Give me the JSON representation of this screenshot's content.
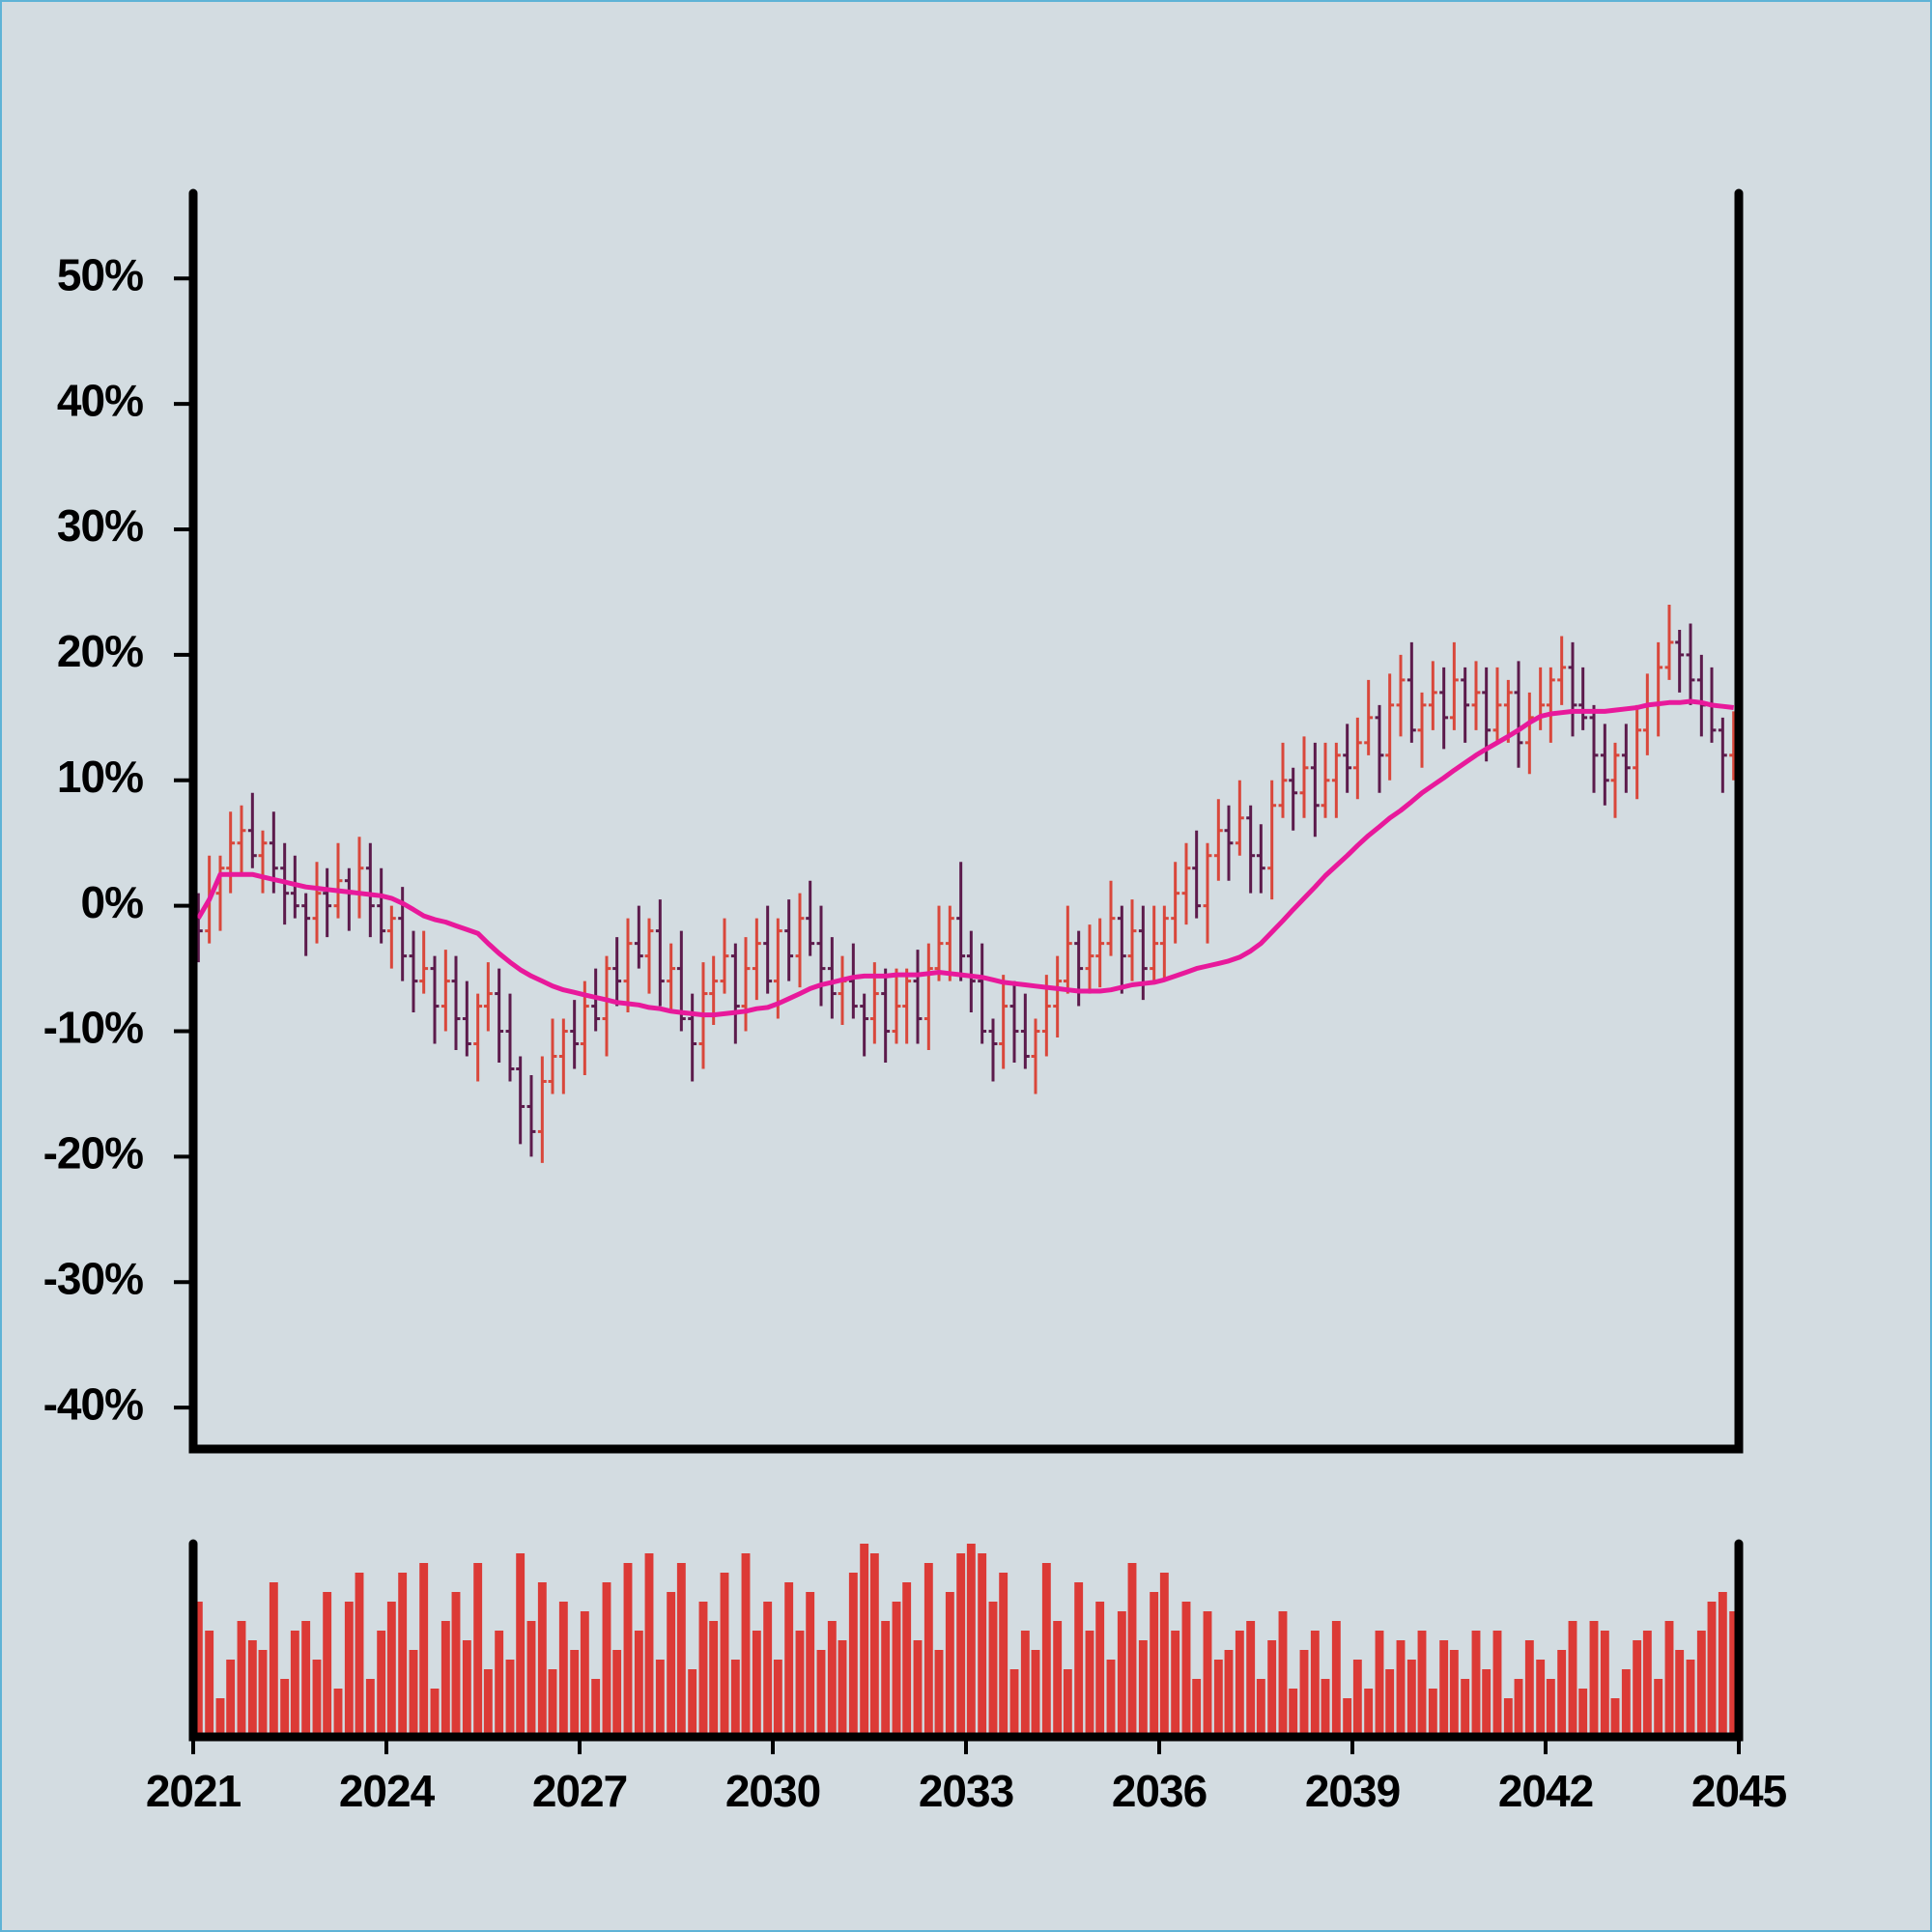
{
  "chart_data": {
    "type": "ohlc",
    "xlim": [
      2021,
      2045
    ],
    "xticks": [
      2021,
      2024,
      2027,
      2030,
      2033,
      2036,
      2039,
      2042,
      2045
    ],
    "ylim": [
      -43.3,
      56.8
    ],
    "yticks": [
      {
        "value": -40,
        "label": "-40%"
      },
      {
        "value": -30,
        "label": "-30%"
      },
      {
        "value": -20,
        "label": "-20%"
      },
      {
        "value": -10,
        "label": "-10%"
      },
      {
        "value": 0,
        "label": "0%"
      },
      {
        "value": 10,
        "label": "10%"
      },
      {
        "value": 20,
        "label": "20%"
      },
      {
        "value": 30,
        "label": "30%"
      },
      {
        "value": 40,
        "label": "40%"
      },
      {
        "value": 50,
        "label": "50%"
      }
    ],
    "up_color": "#d9473b",
    "down_color": "#5c1b4c",
    "x": [
      2021.08,
      2021.25,
      2021.42,
      2021.58,
      2021.75,
      2021.92,
      2022.08,
      2022.25,
      2022.42,
      2022.58,
      2022.75,
      2022.92,
      2023.08,
      2023.25,
      2023.42,
      2023.58,
      2023.75,
      2023.92,
      2024.08,
      2024.25,
      2024.42,
      2024.58,
      2024.75,
      2024.92,
      2025.08,
      2025.25,
      2025.42,
      2025.58,
      2025.75,
      2025.92,
      2026.08,
      2026.25,
      2026.42,
      2026.58,
      2026.75,
      2026.92,
      2027.08,
      2027.25,
      2027.42,
      2027.58,
      2027.75,
      2027.92,
      2028.08,
      2028.25,
      2028.42,
      2028.58,
      2028.75,
      2028.92,
      2029.08,
      2029.25,
      2029.42,
      2029.58,
      2029.75,
      2029.92,
      2030.08,
      2030.25,
      2030.42,
      2030.58,
      2030.75,
      2030.92,
      2031.08,
      2031.25,
      2031.42,
      2031.58,
      2031.75,
      2031.92,
      2032.08,
      2032.25,
      2032.42,
      2032.58,
      2032.75,
      2032.92,
      2033.08,
      2033.25,
      2033.42,
      2033.58,
      2033.75,
      2033.92,
      2034.08,
      2034.25,
      2034.42,
      2034.58,
      2034.75,
      2034.92,
      2035.08,
      2035.25,
      2035.42,
      2035.58,
      2035.75,
      2035.92,
      2036.08,
      2036.25,
      2036.42,
      2036.58,
      2036.75,
      2036.92,
      2037.08,
      2037.25,
      2037.42,
      2037.58,
      2037.75,
      2037.92,
      2038.08,
      2038.25,
      2038.42,
      2038.58,
      2038.75,
      2038.92,
      2039.08,
      2039.25,
      2039.42,
      2039.58,
      2039.75,
      2039.92,
      2040.08,
      2040.25,
      2040.42,
      2040.58,
      2040.75,
      2040.92,
      2041.08,
      2041.25,
      2041.42,
      2041.58,
      2041.75,
      2041.92,
      2042.08,
      2042.25,
      2042.42,
      2042.58,
      2042.75,
      2042.92,
      2043.08,
      2043.25,
      2043.42,
      2043.58,
      2043.75,
      2043.92,
      2044.08,
      2044.25,
      2044.42,
      2044.58,
      2044.75,
      2044.92
    ],
    "open": [
      -1,
      -2,
      1,
      3,
      5,
      6,
      4,
      5,
      3,
      1,
      0,
      -1,
      1,
      0,
      2,
      1,
      3,
      0,
      -2,
      -1,
      -4,
      -6,
      -5,
      -8,
      -6,
      -9,
      -11,
      -8,
      -7,
      -10,
      -13,
      -16,
      -18,
      -14,
      -12,
      -10,
      -11,
      -8,
      -9,
      -5,
      -6,
      -3,
      -4,
      -2,
      -6,
      -5,
      -9,
      -11,
      -7,
      -6,
      -4,
      -8,
      -5,
      -3,
      -6,
      -2,
      -4,
      -1,
      -3,
      -5,
      -7,
      -6,
      -8,
      -9,
      -7,
      -10,
      -8,
      -6,
      -9,
      -5,
      -3,
      -1,
      -4,
      -6,
      -10,
      -11,
      -8,
      -10,
      -12,
      -10,
      -8,
      -6,
      -3,
      -5,
      -4,
      -3,
      -1,
      -4,
      -2,
      -5,
      -3,
      -1,
      1,
      3,
      0,
      4,
      6,
      5,
      7,
      4,
      3,
      8,
      10,
      9,
      11,
      8,
      10,
      12,
      11,
      13,
      15,
      12,
      16,
      18,
      14,
      16,
      17,
      15,
      18,
      16,
      17,
      14,
      16,
      17,
      13,
      15,
      16,
      18,
      19,
      16,
      15,
      12,
      10,
      12,
      11,
      14,
      16,
      19,
      21,
      20,
      18,
      16,
      14,
      12
    ],
    "high": [
      1,
      4,
      4,
      7.5,
      8,
      9,
      6,
      7.5,
      5,
      4,
      1,
      3.5,
      3,
      5,
      3,
      5.5,
      5,
      3,
      0,
      1.5,
      -2,
      -2,
      -4,
      -3.5,
      -4,
      -6,
      -7,
      -4.5,
      -5,
      -7,
      -12,
      -13.5,
      -12,
      -9,
      -9,
      -7.5,
      -6,
      -5,
      -4,
      -2.5,
      -1,
      0,
      -1,
      0.5,
      -3,
      -2,
      -7,
      -4.5,
      -4,
      -1,
      -3,
      -2.5,
      -1,
      0,
      -1,
      0.5,
      1,
      2,
      0,
      -2.5,
      -4,
      -3,
      -7,
      -4.5,
      -5,
      -5,
      -5,
      -3.5,
      -3,
      0,
      0,
      3.5,
      -2,
      -3,
      -9,
      -5.5,
      -6,
      -7,
      -9,
      -5.5,
      -4,
      0,
      -2,
      -1.5,
      -1,
      2,
      0,
      0.5,
      0,
      0,
      0,
      3.5,
      5,
      6,
      5,
      8.5,
      8,
      10,
      8,
      6.5,
      10,
      13,
      11,
      13.5,
      13,
      13,
      13,
      14.5,
      15,
      18,
      16,
      18.5,
      20,
      21,
      17,
      19.5,
      19,
      21,
      19,
      19.5,
      19,
      19,
      18,
      19.5,
      17,
      19,
      19,
      21.5,
      21,
      19,
      16,
      14.5,
      13,
      14.5,
      16,
      18.5,
      21,
      24,
      22,
      22.5,
      20,
      19,
      15,
      15.5
    ],
    "low": [
      -4.5,
      -3,
      -2,
      1,
      2.5,
      3,
      1,
      1,
      -1.5,
      -1,
      -4,
      -3,
      -2.5,
      -1,
      -2,
      -1,
      -2.5,
      -3,
      -5,
      -6,
      -8.5,
      -7,
      -11,
      -10,
      -11.5,
      -12,
      -14,
      -10,
      -12.5,
      -14,
      -19,
      -20,
      -20.5,
      -15,
      -15,
      -13,
      -13.5,
      -10,
      -12,
      -8,
      -8.5,
      -5,
      -7,
      -8,
      -8.5,
      -10,
      -14,
      -13,
      -9.5,
      -7,
      -11,
      -10,
      -7.5,
      -7,
      -9,
      -6,
      -6.5,
      -4,
      -8,
      -9,
      -9.5,
      -9,
      -12,
      -11,
      -12.5,
      -11,
      -11,
      -11,
      -11.5,
      -6,
      -6,
      -6,
      -8.5,
      -11,
      -14,
      -13,
      -12.5,
      -13,
      -15,
      -12,
      -10.5,
      -7,
      -8,
      -7,
      -6.5,
      -4,
      -7,
      -6,
      -7.5,
      -6,
      -6,
      -3,
      -1.5,
      -1,
      -3,
      2,
      2,
      4,
      1,
      1,
      0.5,
      7,
      6,
      7,
      5.5,
      7,
      7,
      9,
      8.5,
      12,
      9,
      10,
      13.5,
      13,
      11,
      14,
      12.5,
      14,
      13,
      14,
      11.5,
      13,
      13,
      11,
      10.5,
      14,
      13,
      16,
      13.5,
      14,
      9,
      8,
      7,
      9,
      8.5,
      12,
      13.5,
      18,
      17,
      16,
      13.5,
      13,
      9,
      10
    ],
    "close": [
      -2,
      1,
      3,
      5,
      6,
      4,
      5,
      3,
      1,
      0,
      -1,
      1,
      0,
      2,
      1,
      3,
      0,
      -2,
      -1,
      -4,
      -6,
      -5,
      -8,
      -6,
      -9,
      -11,
      -8,
      -7,
      -10,
      -13,
      -16,
      -18,
      -14,
      -12,
      -10,
      -11,
      -8,
      -9,
      -5,
      -6,
      -3,
      -4,
      -2,
      -6,
      -5,
      -9,
      -11,
      -7,
      -6,
      -4,
      -8,
      -5,
      -3,
      -6,
      -2,
      -4,
      -1,
      -3,
      -5,
      -7,
      -6,
      -8,
      -9,
      -7,
      -10,
      -8,
      -6,
      -9,
      -5,
      -3,
      -1,
      -4,
      -6,
      -10,
      -11,
      -8,
      -10,
      -12,
      -10,
      -8,
      -6,
      -3,
      -5,
      -4,
      -3,
      -1,
      -4,
      -2,
      -5,
      -3,
      -1,
      1,
      3,
      0,
      4,
      6,
      5,
      7,
      4,
      3,
      8,
      10,
      9,
      11,
      8,
      10,
      12,
      11,
      13,
      15,
      12,
      16,
      18,
      14,
      16,
      17,
      15,
      18,
      16,
      17,
      14,
      16,
      17,
      13,
      15,
      16,
      18,
      19,
      16,
      15,
      12,
      10,
      12,
      11,
      14,
      16,
      19,
      21,
      20,
      18,
      16,
      14,
      12,
      13
    ],
    "moving_average": {
      "color": "#e8199b",
      "values": [
        -1,
        0.5,
        2.5,
        2.5,
        2.5,
        2.5,
        2.3,
        2.1,
        1.9,
        1.7,
        1.5,
        1.4,
        1.3,
        1.2,
        1.1,
        1.0,
        0.9,
        0.8,
        0.6,
        0.2,
        -0.3,
        -0.8,
        -1.1,
        -1.3,
        -1.6,
        -1.9,
        -2.2,
        -3,
        -3.8,
        -4.5,
        -5.1,
        -5.6,
        -6,
        -6.4,
        -6.7,
        -6.9,
        -7.1,
        -7.3,
        -7.5,
        -7.7,
        -7.8,
        -7.9,
        -8.1,
        -8.2,
        -8.4,
        -8.5,
        -8.6,
        -8.7,
        -8.7,
        -8.6,
        -8.5,
        -8.4,
        -8.2,
        -8.1,
        -7.8,
        -7.4,
        -7,
        -6.6,
        -6.3,
        -6.1,
        -5.9,
        -5.7,
        -5.6,
        -5.6,
        -5.6,
        -5.5,
        -5.5,
        -5.5,
        -5.4,
        -5.3,
        -5.4,
        -5.5,
        -5.6,
        -5.7,
        -5.9,
        -6.1,
        -6.2,
        -6.3,
        -6.4,
        -6.5,
        -6.6,
        -6.7,
        -6.8,
        -6.8,
        -6.8,
        -6.7,
        -6.5,
        -6.3,
        -6.2,
        -6.1,
        -5.9,
        -5.6,
        -5.3,
        -5,
        -4.8,
        -4.6,
        -4.4,
        -4.1,
        -3.6,
        -3,
        -2.1,
        -1.2,
        -0.3,
        0.6,
        1.5,
        2.4,
        3.2,
        4,
        4.8,
        5.6,
        6.3,
        7,
        7.6,
        8.3,
        9,
        9.6,
        10.2,
        10.8,
        11.4,
        12,
        12.5,
        13,
        13.5,
        14,
        14.6,
        15.1,
        15.3,
        15.4,
        15.5,
        15.5,
        15.5,
        15.5,
        15.6,
        15.7,
        15.8,
        16,
        16.1,
        16.2,
        16.2,
        16.3,
        16.2,
        16,
        15.9,
        15.8
      ]
    },
    "volume": {
      "color": "#dc3a36",
      "ylim": [
        0,
        100
      ],
      "values": [
        70,
        55,
        20,
        40,
        60,
        50,
        45,
        80,
        30,
        55,
        60,
        40,
        75,
        25,
        70,
        85,
        30,
        55,
        70,
        85,
        45,
        90,
        25,
        60,
        75,
        50,
        90,
        35,
        55,
        40,
        95,
        60,
        80,
        35,
        70,
        45,
        65,
        30,
        80,
        45,
        90,
        55,
        95,
        40,
        75,
        90,
        35,
        70,
        60,
        85,
        40,
        95,
        55,
        70,
        40,
        80,
        55,
        75,
        45,
        60,
        50,
        85,
        100,
        95,
        60,
        70,
        80,
        50,
        90,
        45,
        75,
        95,
        100,
        95,
        70,
        85,
        35,
        55,
        45,
        90,
        60,
        35,
        80,
        55,
        70,
        40,
        65,
        90,
        50,
        75,
        85,
        55,
        70,
        30,
        65,
        40,
        45,
        55,
        60,
        30,
        50,
        65,
        25,
        45,
        55,
        30,
        60,
        20,
        40,
        25,
        55,
        35,
        50,
        40,
        55,
        25,
        50,
        45,
        30,
        55,
        35,
        55,
        20,
        30,
        50,
        40,
        30,
        45,
        60,
        25,
        60,
        55,
        20,
        35,
        50,
        55,
        30,
        60,
        45,
        40,
        55,
        70,
        75,
        65
      ]
    }
  }
}
